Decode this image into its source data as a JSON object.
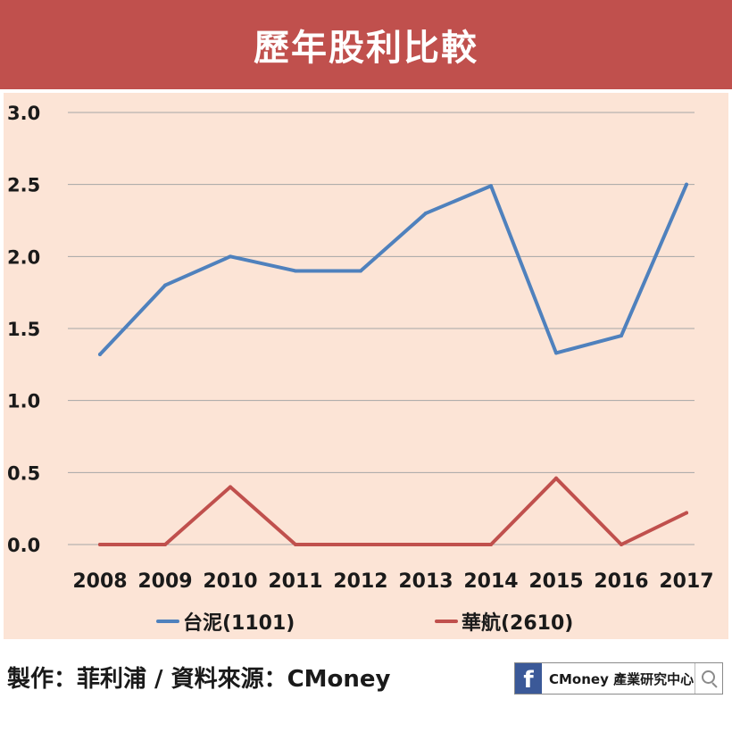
{
  "header": {
    "title": "歷年股利比較"
  },
  "footer": {
    "credit": "製作：菲利浦 / 資料來源：CMoney",
    "brand": "CMoney 產業研究中心",
    "brand_icon": "facebook-icon",
    "search_icon": "search-icon"
  },
  "chart_data": {
    "type": "line",
    "title": "歷年股利比較",
    "xlabel": "",
    "ylabel": "",
    "categories": [
      "2008",
      "2009",
      "2010",
      "2011",
      "2012",
      "2013",
      "2014",
      "2015",
      "2016",
      "2017"
    ],
    "yticks": [
      "3.0",
      "2.5",
      "2.0",
      "1.5",
      "1.0",
      "0.5",
      "0.0"
    ],
    "ylim": [
      0,
      3
    ],
    "grid": true,
    "legend_position": "bottom",
    "series": [
      {
        "name": "台泥(1101)",
        "color": "#4f81bd",
        "values": [
          1.32,
          1.8,
          2.0,
          1.9,
          1.9,
          2.3,
          2.49,
          1.33,
          1.45,
          2.5
        ]
      },
      {
        "name": "華航(2610)",
        "color": "#c0504d",
        "values": [
          0,
          0,
          0.4,
          0,
          0,
          0,
          0,
          0.46,
          0,
          0.22
        ]
      }
    ]
  }
}
